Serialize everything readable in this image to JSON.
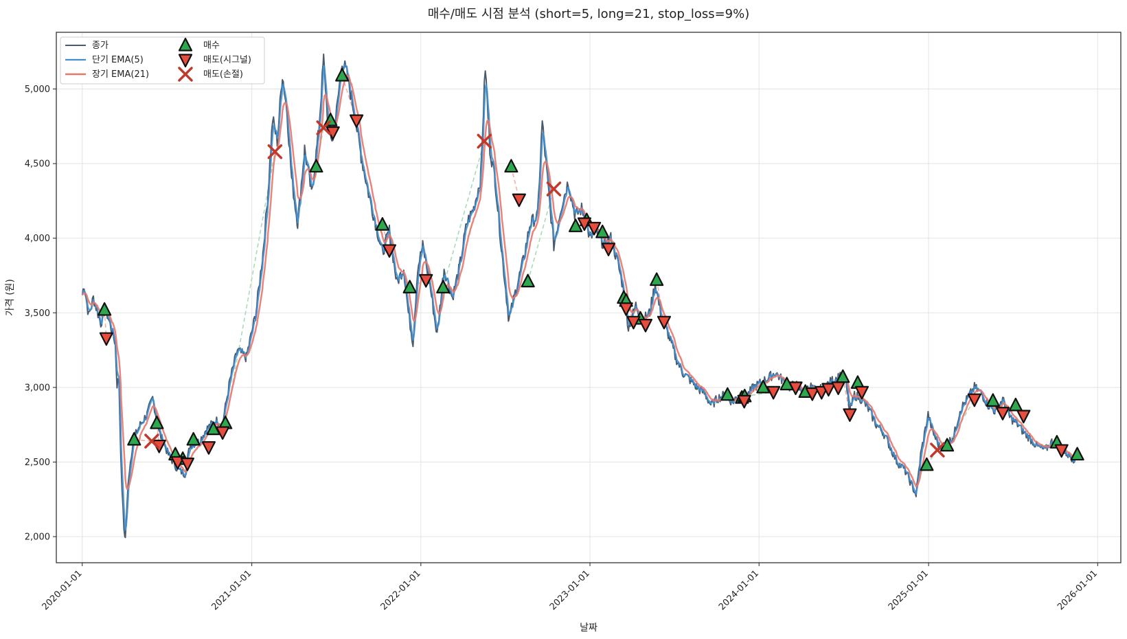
{
  "chart_data": {
    "type": "line",
    "title": "매수/매도 시점 분석 (short=5, long=21, stop_loss=9%)",
    "xlabel": "날짜",
    "ylabel": "가격 (원)",
    "xlim": [
      "2019-11-06",
      "2026-02-20"
    ],
    "ylim": [
      1825,
      5380
    ],
    "grid": true,
    "legend_placement": "top-left",
    "x_ticks": [
      "2020-01-01",
      "2021-01-01",
      "2022-01-01",
      "2023-01-01",
      "2024-01-01",
      "2025-01-01",
      "2026-01-01"
    ],
    "y_ticks": [
      2000,
      2500,
      3000,
      3500,
      4000,
      4500,
      5000
    ],
    "y_tick_labels": [
      "2,000",
      "2,500",
      "3,000",
      "3,500",
      "4,000",
      "4,500",
      "5,000"
    ],
    "legend": [
      "종가",
      "단기 EMA(5)",
      "장기 EMA(21)",
      "매수",
      "매도(시그널)",
      "매도(손절)"
    ],
    "colors": {
      "close": "#4a5b6e",
      "ema_short": "#3f8fd0",
      "ema_long": "#e8776b",
      "buy": "#2ea84f",
      "sell": "#e74c3c",
      "stop": "#c0392b",
      "trade_win": "#a8dcb8",
      "trade_loss": "#f2b0a8"
    },
    "close_anchors": [
      [
        "2020-01-01",
        3620
      ],
      [
        "2020-01-05",
        3690
      ],
      [
        "2020-01-15",
        3480
      ],
      [
        "2020-01-25",
        3600
      ],
      [
        "2020-02-10",
        3430
      ],
      [
        "2020-02-20",
        3530
      ],
      [
        "2020-03-05",
        3380
      ],
      [
        "2020-03-12",
        3300
      ],
      [
        "2020-03-16",
        3020
      ],
      [
        "2020-03-20",
        3060
      ],
      [
        "2020-03-25",
        2450
      ],
      [
        "2020-03-31",
        2050
      ],
      [
        "2020-04-03",
        1990
      ],
      [
        "2020-04-10",
        2400
      ],
      [
        "2020-04-20",
        2650
      ],
      [
        "2020-05-05",
        2750
      ],
      [
        "2020-05-20",
        2820
      ],
      [
        "2020-06-01",
        2930
      ],
      [
        "2020-06-15",
        2700
      ],
      [
        "2020-07-05",
        2550
      ],
      [
        "2020-07-25",
        2450
      ],
      [
        "2020-08-10",
        2420
      ],
      [
        "2020-08-20",
        2610
      ],
      [
        "2020-09-10",
        2640
      ],
      [
        "2020-09-25",
        2720
      ],
      [
        "2020-10-15",
        2780
      ],
      [
        "2020-10-30",
        2760
      ],
      [
        "2020-11-15",
        3050
      ],
      [
        "2020-12-01",
        3250
      ],
      [
        "2020-12-20",
        3200
      ],
      [
        "2021-01-10",
        3500
      ],
      [
        "2021-01-25",
        3900
      ],
      [
        "2021-02-05",
        4300
      ],
      [
        "2021-02-15",
        4800
      ],
      [
        "2021-02-25",
        4650
      ],
      [
        "2021-03-08",
        5100
      ],
      [
        "2021-03-18",
        4850
      ],
      [
        "2021-03-28",
        4400
      ],
      [
        "2021-04-10",
        4100
      ],
      [
        "2021-04-25",
        4600
      ],
      [
        "2021-05-10",
        4300
      ],
      [
        "2021-05-25",
        4700
      ],
      [
        "2021-06-05",
        5200
      ],
      [
        "2021-06-15",
        4750
      ],
      [
        "2021-06-25",
        4650
      ],
      [
        "2021-07-05",
        4900
      ],
      [
        "2021-07-15",
        5200
      ],
      [
        "2021-07-25",
        5100
      ],
      [
        "2021-08-10",
        4850
      ],
      [
        "2021-08-25",
        4550
      ],
      [
        "2021-09-10",
        4300
      ],
      [
        "2021-09-25",
        4100
      ],
      [
        "2021-10-10",
        3900
      ],
      [
        "2021-10-25",
        4050
      ],
      [
        "2021-11-10",
        3700
      ],
      [
        "2021-11-25",
        3800
      ],
      [
        "2021-12-05",
        3500
      ],
      [
        "2021-12-15",
        3300
      ],
      [
        "2021-12-25",
        3800
      ],
      [
        "2022-01-05",
        3950
      ],
      [
        "2022-01-20",
        3700
      ],
      [
        "2022-02-05",
        3350
      ],
      [
        "2022-02-20",
        3800
      ],
      [
        "2022-03-10",
        3600
      ],
      [
        "2022-03-25",
        3800
      ],
      [
        "2022-04-10",
        4100
      ],
      [
        "2022-04-25",
        4200
      ],
      [
        "2022-05-10",
        4400
      ],
      [
        "2022-05-20",
        5150
      ],
      [
        "2022-05-30",
        4600
      ],
      [
        "2022-06-10",
        4400
      ],
      [
        "2022-06-25",
        3900
      ],
      [
        "2022-07-10",
        3450
      ],
      [
        "2022-07-25",
        3650
      ],
      [
        "2022-08-10",
        3850
      ],
      [
        "2022-08-25",
        4100
      ],
      [
        "2022-09-10",
        4150
      ],
      [
        "2022-09-20",
        4780
      ],
      [
        "2022-10-01",
        4400
      ],
      [
        "2022-10-15",
        3950
      ],
      [
        "2022-10-30",
        4200
      ],
      [
        "2022-11-15",
        4380
      ],
      [
        "2022-11-30",
        4150
      ],
      [
        "2022-12-15",
        4200
      ],
      [
        "2023-01-01",
        4000
      ],
      [
        "2023-01-15",
        4050
      ],
      [
        "2023-02-01",
        3950
      ],
      [
        "2023-02-15",
        4000
      ],
      [
        "2023-03-01",
        3850
      ],
      [
        "2023-03-15",
        3650
      ],
      [
        "2023-03-25",
        3400
      ],
      [
        "2023-04-10",
        3550
      ],
      [
        "2023-04-25",
        3450
      ],
      [
        "2023-05-10",
        3500
      ],
      [
        "2023-05-22",
        3700
      ],
      [
        "2023-06-05",
        3450
      ],
      [
        "2023-06-20",
        3350
      ],
      [
        "2023-07-05",
        3200
      ],
      [
        "2023-07-20",
        3100
      ],
      [
        "2023-08-05",
        3050
      ],
      [
        "2023-08-20",
        3000
      ],
      [
        "2023-09-05",
        2960
      ],
      [
        "2023-09-20",
        2880
      ],
      [
        "2023-10-05",
        2930
      ],
      [
        "2023-10-20",
        2950
      ],
      [
        "2023-11-05",
        2900
      ],
      [
        "2023-11-20",
        2960
      ],
      [
        "2023-12-05",
        2940
      ],
      [
        "2023-12-20",
        3000
      ],
      [
        "2024-01-05",
        3030
      ],
      [
        "2024-01-20",
        3060
      ],
      [
        "2024-02-05",
        3100
      ],
      [
        "2024-02-20",
        3050
      ],
      [
        "2024-03-05",
        3000
      ],
      [
        "2024-03-20",
        3020
      ],
      [
        "2024-04-05",
        2960
      ],
      [
        "2024-04-20",
        3010
      ],
      [
        "2024-05-05",
        2970
      ],
      [
        "2024-05-20",
        3000
      ],
      [
        "2024-06-05",
        3040
      ],
      [
        "2024-06-20",
        3080
      ],
      [
        "2024-07-05",
        3060
      ],
      [
        "2024-07-15",
        2840
      ],
      [
        "2024-07-25",
        2950
      ],
      [
        "2024-08-10",
        2920
      ],
      [
        "2024-08-25",
        2850
      ],
      [
        "2024-09-10",
        2750
      ],
      [
        "2024-09-25",
        2700
      ],
      [
        "2024-10-10",
        2600
      ],
      [
        "2024-10-25",
        2500
      ],
      [
        "2024-11-10",
        2450
      ],
      [
        "2024-11-25",
        2350
      ],
      [
        "2024-12-05",
        2280
      ],
      [
        "2024-12-15",
        2550
      ],
      [
        "2024-12-31",
        2820
      ],
      [
        "2025-01-10",
        2700
      ],
      [
        "2025-01-25",
        2600
      ],
      [
        "2025-02-10",
        2620
      ],
      [
        "2025-02-25",
        2680
      ],
      [
        "2025-03-10",
        2850
      ],
      [
        "2025-03-25",
        2920
      ],
      [
        "2025-04-10",
        3000
      ],
      [
        "2025-04-25",
        2960
      ],
      [
        "2025-05-10",
        2880
      ],
      [
        "2025-05-25",
        2840
      ],
      [
        "2025-06-10",
        2920
      ],
      [
        "2025-06-25",
        2800
      ],
      [
        "2025-07-10",
        2760
      ],
      [
        "2025-07-25",
        2700
      ],
      [
        "2025-08-10",
        2650
      ],
      [
        "2025-08-25",
        2600
      ],
      [
        "2025-09-10",
        2580
      ],
      [
        "2025-09-25",
        2640
      ],
      [
        "2025-10-10",
        2600
      ],
      [
        "2025-10-25",
        2560
      ],
      [
        "2025-11-10",
        2520
      ],
      [
        "2025-11-20",
        2550
      ]
    ],
    "buy_signals": [
      [
        "2020-02-18",
        3520
      ],
      [
        "2020-04-22",
        2650
      ],
      [
        "2020-06-10",
        2760
      ],
      [
        "2020-07-20",
        2550
      ],
      [
        "2020-08-05",
        2520
      ],
      [
        "2020-08-28",
        2650
      ],
      [
        "2020-10-10",
        2720
      ],
      [
        "2020-11-05",
        2760
      ],
      [
        "2021-05-20",
        4480
      ],
      [
        "2021-06-20",
        4790
      ],
      [
        "2021-07-15",
        5090
      ],
      [
        "2021-10-10",
        4090
      ],
      [
        "2021-12-08",
        3670
      ],
      [
        "2022-02-18",
        3670
      ],
      [
        "2022-07-15",
        4480
      ],
      [
        "2022-08-20",
        3710
      ],
      [
        "2022-12-01",
        4080
      ],
      [
        "2022-12-25",
        4120
      ],
      [
        "2023-01-28",
        4040
      ],
      [
        "2023-03-15",
        3600
      ],
      [
        "2023-03-20",
        3580
      ],
      [
        "2023-04-20",
        3460
      ],
      [
        "2023-05-25",
        3720
      ],
      [
        "2023-10-25",
        2950
      ],
      [
        "2023-11-25",
        2930
      ],
      [
        "2023-12-01",
        2940
      ],
      [
        "2024-01-10",
        3000
      ],
      [
        "2024-03-01",
        3020
      ],
      [
        "2024-04-10",
        2970
      ],
      [
        "2024-06-30",
        3070
      ],
      [
        "2024-08-01",
        3030
      ],
      [
        "2024-12-28",
        2480
      ],
      [
        "2025-02-10",
        2610
      ],
      [
        "2025-05-20",
        2910
      ],
      [
        "2025-07-08",
        2880
      ],
      [
        "2025-10-05",
        2630
      ],
      [
        "2025-11-18",
        2550
      ]
    ],
    "sell_signals": [
      [
        "2020-02-22",
        3330
      ],
      [
        "2020-06-15",
        2610
      ],
      [
        "2020-07-25",
        2500
      ],
      [
        "2020-08-15",
        2490
      ],
      [
        "2020-09-30",
        2600
      ],
      [
        "2020-10-30",
        2700
      ],
      [
        "2021-06-25",
        4710
      ],
      [
        "2021-08-15",
        4790
      ],
      [
        "2021-10-25",
        3920
      ],
      [
        "2022-01-12",
        3720
      ],
      [
        "2022-08-01",
        4260
      ],
      [
        "2022-12-20",
        4100
      ],
      [
        "2023-01-10",
        4070
      ],
      [
        "2023-02-10",
        3930
      ],
      [
        "2023-03-20",
        3530
      ],
      [
        "2023-04-05",
        3440
      ],
      [
        "2023-05-01",
        3420
      ],
      [
        "2023-06-10",
        3440
      ],
      [
        "2023-11-30",
        2910
      ],
      [
        "2024-02-01",
        2970
      ],
      [
        "2024-03-20",
        3000
      ],
      [
        "2024-04-25",
        2960
      ],
      [
        "2024-05-15",
        2970
      ],
      [
        "2024-05-30",
        2990
      ],
      [
        "2024-06-20",
        3000
      ],
      [
        "2024-07-15",
        2820
      ],
      [
        "2024-08-10",
        2970
      ],
      [
        "2025-04-10",
        2920
      ],
      [
        "2025-06-10",
        2830
      ],
      [
        "2025-07-25",
        2810
      ],
      [
        "2025-10-15",
        2580
      ]
    ],
    "stop_loss": [
      [
        "2020-05-30",
        2640
      ],
      [
        "2021-02-20",
        4580
      ],
      [
        "2021-06-05",
        4740
      ],
      [
        "2022-05-18",
        4650
      ],
      [
        "2022-10-15",
        4330
      ],
      [
        "2025-01-20",
        2580
      ]
    ],
    "trades": [
      [
        "2020-02-18",
        3520,
        "2020-02-22",
        3330
      ],
      [
        "2020-04-22",
        2650,
        "2020-05-30",
        2640
      ],
      [
        "2020-06-10",
        2760,
        "2020-06-15",
        2610
      ],
      [
        "2020-07-20",
        2550,
        "2020-07-25",
        2500
      ],
      [
        "2020-08-05",
        2520,
        "2020-08-15",
        2490
      ],
      [
        "2020-08-28",
        2650,
        "2020-09-30",
        2600
      ],
      [
        "2020-10-10",
        2720,
        "2020-10-30",
        2700
      ],
      [
        "2020-11-05",
        2760,
        "2021-02-20",
        4580
      ],
      [
        "2021-05-20",
        4480,
        "2021-06-05",
        4740
      ],
      [
        "2021-06-20",
        4790,
        "2021-06-25",
        4710
      ],
      [
        "2021-07-15",
        5090,
        "2021-08-15",
        4790
      ],
      [
        "2021-10-10",
        4090,
        "2021-10-25",
        3920
      ],
      [
        "2021-12-08",
        3670,
        "2022-01-12",
        3720
      ],
      [
        "2022-02-18",
        3670,
        "2022-05-18",
        4650
      ],
      [
        "2022-07-15",
        4480,
        "2022-08-01",
        4260
      ],
      [
        "2022-08-20",
        3710,
        "2022-10-15",
        4330
      ],
      [
        "2022-12-01",
        4080,
        "2022-12-20",
        4100
      ],
      [
        "2022-12-25",
        4120,
        "2023-01-10",
        4070
      ],
      [
        "2023-01-28",
        4040,
        "2023-02-10",
        3930
      ],
      [
        "2023-03-15",
        3600,
        "2023-03-20",
        3530
      ],
      [
        "2023-03-20",
        3580,
        "2023-04-05",
        3440
      ],
      [
        "2023-04-20",
        3460,
        "2023-05-01",
        3420
      ],
      [
        "2023-05-25",
        3720,
        "2023-06-10",
        3440
      ],
      [
        "2023-10-25",
        2950,
        "2023-11-30",
        2910
      ],
      [
        "2023-12-01",
        2940,
        "2024-02-01",
        2970
      ],
      [
        "2024-03-01",
        3020,
        "2024-03-20",
        3000
      ],
      [
        "2024-04-10",
        2970,
        "2024-04-25",
        2960
      ],
      [
        "2024-06-30",
        3070,
        "2024-07-15",
        2820
      ],
      [
        "2024-08-01",
        3030,
        "2024-08-10",
        2970
      ],
      [
        "2024-12-28",
        2480,
        "2025-01-20",
        2580
      ],
      [
        "2025-02-10",
        2610,
        "2025-04-10",
        2920
      ],
      [
        "2025-05-20",
        2910,
        "2025-06-10",
        2830
      ],
      [
        "2025-07-08",
        2880,
        "2025-07-25",
        2810
      ],
      [
        "2025-10-05",
        2630,
        "2025-10-15",
        2580
      ]
    ]
  }
}
